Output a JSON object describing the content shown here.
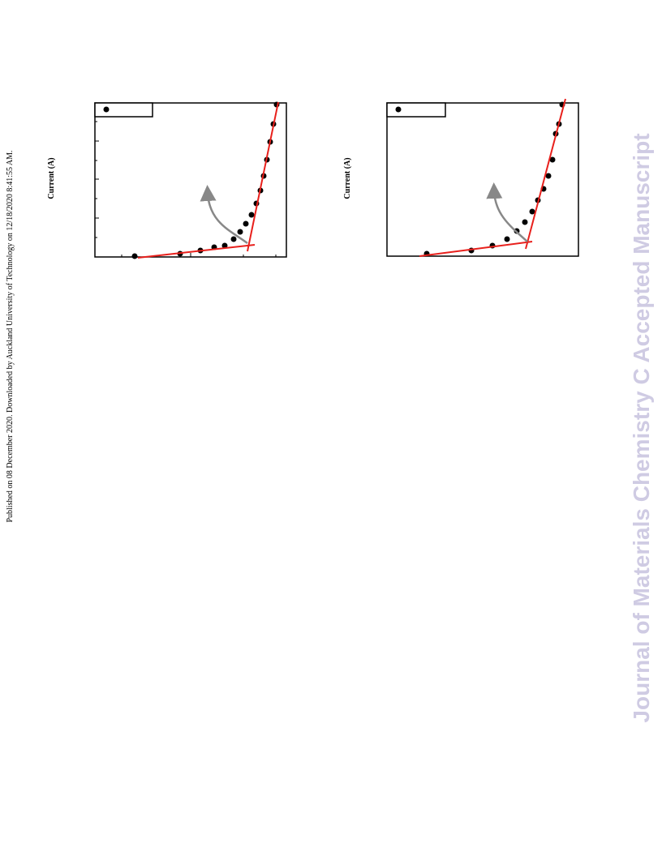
{
  "header": {
    "published": "Published on 08 December 2020. Downloaded by Auckland University of Technology on 12/18/2020 8:41:55 AM."
  },
  "figures": [
    {
      "y_label": "Current (A)"
    },
    {
      "y_label": "Current (A)"
    }
  ],
  "watermark": "Journal of Materials Chemistry C Accepted Manuscript"
}
